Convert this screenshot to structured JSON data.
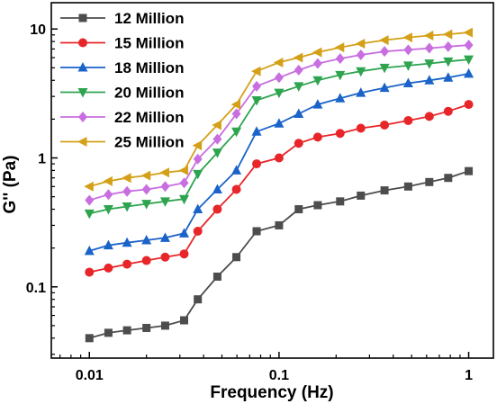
{
  "chart_data": {
    "type": "line",
    "xlabel": "Frequency (Hz)",
    "ylabel": "G'' (Pa)",
    "xscale": "log",
    "yscale": "log",
    "xlim": [
      0.0063,
      1.35
    ],
    "ylim": [
      0.028,
      16
    ],
    "x_ticks": [
      {
        "value": 0.01,
        "label": "0.01"
      },
      {
        "value": 0.1,
        "label": "0.1"
      },
      {
        "value": 1,
        "label": "1"
      }
    ],
    "y_ticks": [
      {
        "value": 0.1,
        "label": "0.1"
      },
      {
        "value": 1,
        "label": "1"
      },
      {
        "value": 10,
        "label": "10"
      }
    ],
    "legend_position": "top-left",
    "x": [
      0.01,
      0.0126,
      0.0158,
      0.02,
      0.0251,
      0.0316,
      0.0373,
      0.0473,
      0.0596,
      0.0762,
      0.1,
      0.127,
      0.16,
      0.21,
      0.27,
      0.36,
      0.48,
      0.62,
      0.78,
      1.0
    ],
    "series": [
      {
        "name": "12 Million",
        "color": "#4d4d4d",
        "marker": "square",
        "values": [
          0.04,
          0.044,
          0.046,
          0.048,
          0.05,
          0.055,
          0.08,
          0.12,
          0.17,
          0.27,
          0.3,
          0.4,
          0.43,
          0.46,
          0.51,
          0.56,
          0.6,
          0.65,
          0.7,
          0.79
        ]
      },
      {
        "name": "15 Million",
        "color": "#e8262a",
        "marker": "circle",
        "values": [
          0.13,
          0.14,
          0.15,
          0.16,
          0.17,
          0.18,
          0.27,
          0.4,
          0.57,
          0.9,
          1.0,
          1.3,
          1.45,
          1.55,
          1.7,
          1.8,
          1.95,
          2.1,
          2.3,
          2.6
        ]
      },
      {
        "name": "18 Million",
        "color": "#1a63c9",
        "marker": "triangle-up",
        "values": [
          0.19,
          0.21,
          0.22,
          0.23,
          0.24,
          0.26,
          0.4,
          0.57,
          0.8,
          1.6,
          1.85,
          2.2,
          2.6,
          2.9,
          3.2,
          3.5,
          3.8,
          4.0,
          4.2,
          4.5
        ]
      },
      {
        "name": "20 Million",
        "color": "#2ea44f",
        "marker": "triangle-down",
        "values": [
          0.37,
          0.4,
          0.42,
          0.44,
          0.46,
          0.48,
          0.75,
          1.1,
          1.6,
          2.8,
          3.2,
          3.6,
          4.0,
          4.4,
          4.7,
          5.0,
          5.2,
          5.4,
          5.6,
          5.8
        ]
      },
      {
        "name": "22 Million",
        "color": "#c86ee0",
        "marker": "diamond",
        "values": [
          0.47,
          0.52,
          0.55,
          0.57,
          0.6,
          0.64,
          0.98,
          1.4,
          2.2,
          3.6,
          4.2,
          4.8,
          5.4,
          5.9,
          6.3,
          6.7,
          6.9,
          7.1,
          7.3,
          7.5
        ]
      },
      {
        "name": "25 Million",
        "color": "#d4a017",
        "marker": "triangle-left",
        "values": [
          0.6,
          0.66,
          0.7,
          0.73,
          0.77,
          0.8,
          1.25,
          1.8,
          2.6,
          4.7,
          5.5,
          6.0,
          6.6,
          7.2,
          7.7,
          8.2,
          8.6,
          8.9,
          9.1,
          9.4
        ]
      }
    ]
  }
}
